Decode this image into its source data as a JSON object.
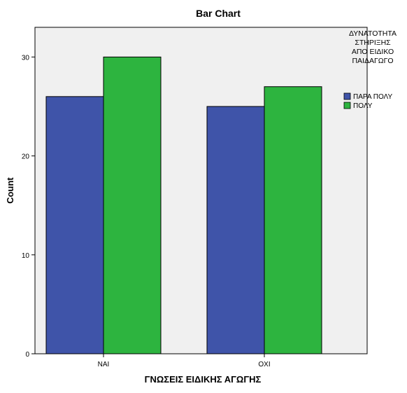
{
  "chart_data": {
    "type": "bar",
    "title": "Bar Chart",
    "xlabel": "ΓΝΩΣΕΙΣ ΕΙΔΙΚΗΣ ΑΓΩΓΗΣ",
    "ylabel": "Count",
    "categories": [
      "ΝΑΙ",
      "ΟΧΙ"
    ],
    "series": [
      {
        "name": "ΠΑΡΑ ΠΟΛΥ",
        "values": [
          26,
          25
        ],
        "color": "#3F54A9"
      },
      {
        "name": "ΠΟΛΥ",
        "values": [
          30,
          27
        ],
        "color": "#2DB43F"
      }
    ],
    "ylim": [
      0,
      33
    ],
    "yticks": [
      0,
      10,
      20,
      30
    ],
    "grid": false,
    "legend": {
      "title_lines": [
        "ΔΥΝΑΤΟΤΗΤΑ",
        "ΣΤΗΡΙΞΗΣ",
        "ΑΠΟ ΕΙΔΙΚΟ",
        "ΠΑΙΔΑΓΩΓΟ"
      ],
      "placement": "right"
    },
    "plot_background": "#F0F0F0"
  }
}
